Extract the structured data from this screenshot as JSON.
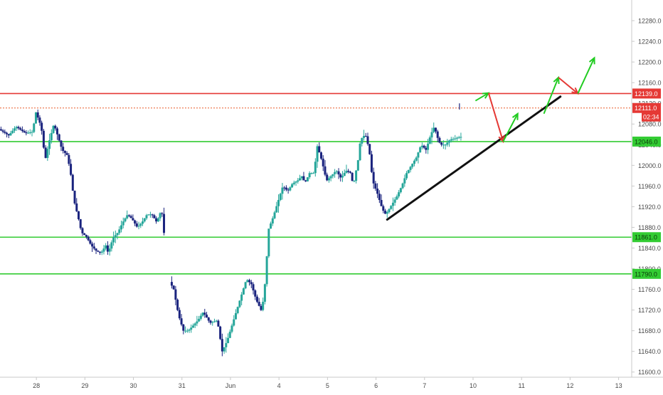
{
  "chart_data": {
    "type": "candlestick",
    "price_axis": {
      "ylim": [
        11590,
        12320
      ],
      "ticks": [
        12280,
        12240,
        12200,
        12160,
        12120,
        12080,
        12040,
        12000,
        11960,
        11920,
        11880,
        11840,
        11800,
        11760,
        11720,
        11680,
        11640,
        11600
      ],
      "tick_labels": [
        "12280.0",
        "12240.0",
        "12200.0",
        "12160.0",
        "12120.0",
        "12080.0",
        "12040.0",
        "12000.0",
        "11960.0",
        "11920.0",
        "11880.0",
        "11840.0",
        "11800.0",
        "11760.0",
        "11720.0",
        "11680.0",
        "11640.0",
        "11600.0"
      ]
    },
    "time_axis": {
      "ticks": [
        {
          "pos": 0.5,
          "label": "28"
        },
        {
          "pos": 1.5,
          "label": "29"
        },
        {
          "pos": 2.5,
          "label": "30"
        },
        {
          "pos": 3.5,
          "label": "31"
        },
        {
          "pos": 4.5,
          "label": "Jun"
        },
        {
          "pos": 5.5,
          "label": "4"
        },
        {
          "pos": 6.5,
          "label": "5"
        },
        {
          "pos": 7.5,
          "label": "6"
        },
        {
          "pos": 8.5,
          "label": "7"
        },
        {
          "pos": 9.5,
          "label": "10"
        },
        {
          "pos": 10.5,
          "label": "11"
        },
        {
          "pos": 11.5,
          "label": "12"
        },
        {
          "pos": 12.5,
          "label": "13"
        }
      ],
      "xlim": [
        -0.25,
        12.77
      ]
    },
    "price_path": [
      [
        -0.25,
        12070
      ],
      [
        -0.05,
        12058
      ],
      [
        0.1,
        12075
      ],
      [
        0.3,
        12062
      ],
      [
        0.45,
        12065
      ],
      [
        0.5,
        12105
      ],
      [
        0.62,
        12075
      ],
      [
        0.7,
        12010
      ],
      [
        0.78,
        12045
      ],
      [
        0.88,
        12080
      ],
      [
        0.95,
        12060
      ],
      [
        1.05,
        12030
      ],
      [
        1.15,
        12020
      ],
      [
        1.22,
        11990
      ],
      [
        1.25,
        11965
      ],
      [
        1.3,
        11930
      ],
      [
        1.38,
        11900
      ],
      [
        1.45,
        11870
      ],
      [
        1.55,
        11862
      ],
      [
        1.65,
        11845
      ],
      [
        1.75,
        11835
      ],
      [
        1.85,
        11830
      ],
      [
        1.95,
        11845
      ],
      [
        2.0,
        11830
      ],
      [
        2.1,
        11860
      ],
      [
        2.2,
        11870
      ],
      [
        2.3,
        11890
      ],
      [
        2.4,
        11905
      ],
      [
        2.5,
        11895
      ],
      [
        2.6,
        11880
      ],
      [
        2.7,
        11890
      ],
      [
        2.8,
        11905
      ],
      [
        2.9,
        11905
      ],
      [
        3.0,
        11890
      ],
      [
        3.1,
        11915
      ],
      [
        3.25,
        11778
      ],
      [
        3.35,
        11760
      ],
      [
        3.45,
        11710
      ],
      [
        3.55,
        11680
      ],
      [
        3.65,
        11680
      ],
      [
        3.75,
        11690
      ],
      [
        3.85,
        11700
      ],
      [
        3.95,
        11715
      ],
      [
        4.0,
        11710
      ],
      [
        4.1,
        11695
      ],
      [
        4.25,
        11700
      ],
      [
        4.35,
        11640
      ],
      [
        4.45,
        11660
      ],
      [
        4.55,
        11690
      ],
      [
        4.65,
        11720
      ],
      [
        4.75,
        11750
      ],
      [
        4.85,
        11780
      ],
      [
        4.95,
        11770
      ],
      [
        5.05,
        11740
      ],
      [
        5.15,
        11720
      ],
      [
        5.2,
        11740
      ],
      [
        5.25,
        11790
      ],
      [
        5.3,
        11875
      ],
      [
        5.4,
        11900
      ],
      [
        5.5,
        11930
      ],
      [
        5.6,
        11960
      ],
      [
        5.7,
        11950
      ],
      [
        5.8,
        11965
      ],
      [
        5.9,
        11970
      ],
      [
        6.0,
        11980
      ],
      [
        6.05,
        11965
      ],
      [
        6.15,
        11985
      ],
      [
        6.25,
        11985
      ],
      [
        6.3,
        12040
      ],
      [
        6.4,
        12010
      ],
      [
        6.5,
        11970
      ],
      [
        6.6,
        11980
      ],
      [
        6.7,
        11990
      ],
      [
        6.8,
        11975
      ],
      [
        6.9,
        11990
      ],
      [
        7.0,
        11985
      ],
      [
        7.05,
        11960
      ],
      [
        7.15,
        12010
      ],
      [
        7.2,
        12050
      ],
      [
        7.3,
        12060
      ],
      [
        7.38,
        12030
      ],
      [
        7.45,
        11970
      ],
      [
        7.55,
        11945
      ],
      [
        7.65,
        11915
      ],
      [
        7.72,
        11905
      ],
      [
        7.82,
        11920
      ],
      [
        7.95,
        11940
      ],
      [
        8.05,
        11960
      ],
      [
        8.15,
        11985
      ],
      [
        8.25,
        12000
      ],
      [
        8.35,
        12015
      ],
      [
        8.45,
        12040
      ],
      [
        8.55,
        12030
      ],
      [
        8.65,
        12060
      ],
      [
        8.72,
        12075
      ],
      [
        8.8,
        12050
      ],
      [
        8.85,
        12040
      ],
      [
        8.95,
        12040
      ],
      [
        9.05,
        12050
      ],
      [
        9.15,
        12052
      ],
      [
        9.25,
        12055
      ]
    ],
    "horizontal_levels": [
      {
        "price": 12139,
        "color": "#e53935",
        "style": "solid",
        "label": "12139.0"
      },
      {
        "price": 12111,
        "color": "#e85d2a",
        "style": "dotted",
        "label": "12111.0"
      },
      {
        "price": 12046,
        "color": "#33cc33",
        "style": "solid",
        "label": "12046.0"
      },
      {
        "price": 11861,
        "color": "#33cc33",
        "style": "solid",
        "label": "11861.0"
      },
      {
        "price": 11790,
        "color": "#33cc33",
        "style": "solid",
        "label": "11790.0"
      }
    ],
    "countdown_label": "02:34",
    "trendline": {
      "from": [
        7.73,
        11895
      ],
      "to": [
        11.3,
        12133
      ],
      "color": "#111111"
    },
    "projection_arrows": [
      {
        "from": [
          9.55,
          12125
        ],
        "to": [
          9.82,
          12140
        ],
        "color": "#22cc22"
      },
      {
        "from": [
          9.82,
          12140
        ],
        "to": [
          10.12,
          12046
        ],
        "color": "#e53935"
      },
      {
        "from": [
          10.12,
          12046
        ],
        "to": [
          10.42,
          12100
        ],
        "color": "#22cc22"
      },
      {
        "from": [
          10.96,
          12100
        ],
        "to": [
          11.26,
          12170
        ],
        "color": "#22cc22"
      },
      {
        "from": [
          11.26,
          12170
        ],
        "to": [
          11.66,
          12139
        ],
        "color": "#e53935"
      },
      {
        "from": [
          11.66,
          12139
        ],
        "to": [
          12.0,
          12208
        ],
        "color": "#22cc22"
      }
    ],
    "colors": {
      "up": "#26a69a",
      "down": "#1a237e",
      "axis_text": "#4a4a4a",
      "axis_line": "#c9c9c9"
    }
  }
}
